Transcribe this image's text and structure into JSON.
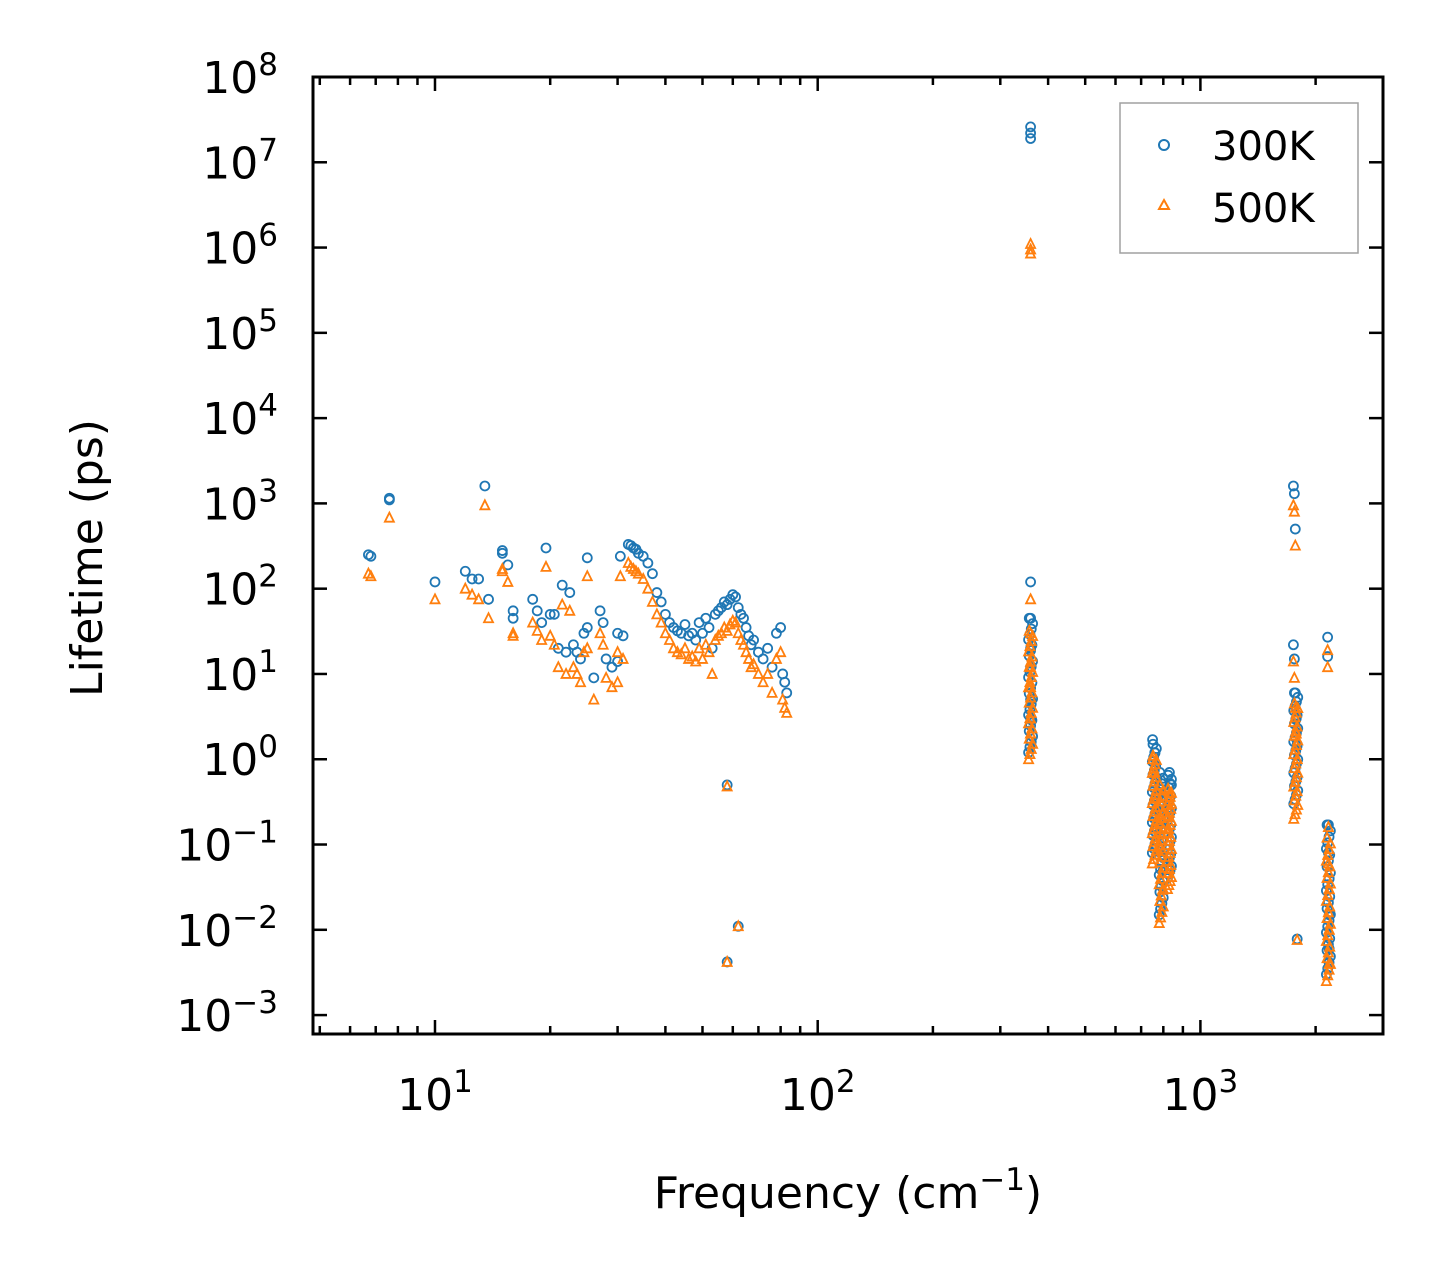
{
  "chart_data": {
    "type": "scatter",
    "title": "",
    "xlabel": "Frequency (cm",
    "xlabel_sup": "−1",
    "xlabel_suffix": ")",
    "ylabel": "Lifetime (ps)",
    "xscale": "log",
    "yscale": "log",
    "xlim": [
      4.8,
      3000
    ],
    "ylim": [
      0.0006,
      100000000
    ],
    "legend_position": "top-right",
    "colors": {
      "300K": "#1f77b4",
      "500K": "#ff7f0e"
    },
    "x_ticks": [
      {
        "value": 10,
        "base": "10",
        "exp": "1"
      },
      {
        "value": 100,
        "base": "10",
        "exp": "2"
      },
      {
        "value": 1000,
        "base": "10",
        "exp": "3"
      }
    ],
    "y_ticks": [
      {
        "value": 0.001,
        "base": "10",
        "exp": "−3"
      },
      {
        "value": 0.01,
        "base": "10",
        "exp": "−2"
      },
      {
        "value": 0.1,
        "base": "10",
        "exp": "−1"
      },
      {
        "value": 1,
        "base": "10",
        "exp": "0"
      },
      {
        "value": 10,
        "base": "10",
        "exp": "1"
      },
      {
        "value": 100,
        "base": "10",
        "exp": "2"
      },
      {
        "value": 1000,
        "base": "10",
        "exp": "3"
      },
      {
        "value": 10000,
        "base": "10",
        "exp": "4"
      },
      {
        "value": 100000,
        "base": "10",
        "exp": "5"
      },
      {
        "value": 1000000,
        "base": "10",
        "exp": "6"
      },
      {
        "value": 10000000,
        "base": "10",
        "exp": "7"
      },
      {
        "value": 100000000,
        "base": "10",
        "exp": "8"
      }
    ],
    "series": [
      {
        "name": "300K",
        "marker": "circle",
        "points": [
          [
            6.7,
            250
          ],
          [
            6.8,
            240
          ],
          [
            7.6,
            1150
          ],
          [
            7.6,
            1100
          ],
          [
            10,
            120
          ],
          [
            12,
            160
          ],
          [
            12.5,
            130
          ],
          [
            13,
            130
          ],
          [
            13.5,
            1600
          ],
          [
            13.8,
            75
          ],
          [
            15,
            280
          ],
          [
            15,
            260
          ],
          [
            15.5,
            190
          ],
          [
            16,
            55
          ],
          [
            16,
            45
          ],
          [
            18,
            75
          ],
          [
            18.5,
            55
          ],
          [
            19,
            40
          ],
          [
            19.5,
            300
          ],
          [
            20,
            50
          ],
          [
            20.5,
            50
          ],
          [
            21,
            20
          ],
          [
            21.5,
            110
          ],
          [
            22,
            18
          ],
          [
            22.5,
            90
          ],
          [
            23,
            22
          ],
          [
            23.5,
            18
          ],
          [
            24,
            15
          ],
          [
            24.5,
            30
          ],
          [
            25,
            35
          ],
          [
            25,
            230
          ],
          [
            26,
            9
          ],
          [
            27,
            55
          ],
          [
            27.5,
            40
          ],
          [
            28,
            15
          ],
          [
            29,
            12
          ],
          [
            30,
            14
          ],
          [
            30,
            30
          ],
          [
            30.5,
            240
          ],
          [
            31,
            28
          ],
          [
            32,
            330
          ],
          [
            32.5,
            320
          ],
          [
            33,
            300
          ],
          [
            33.5,
            290
          ],
          [
            34,
            260
          ],
          [
            35,
            240
          ],
          [
            36,
            200
          ],
          [
            37,
            150
          ],
          [
            38,
            90
          ],
          [
            39,
            70
          ],
          [
            40,
            50
          ],
          [
            41,
            40
          ],
          [
            42,
            35
          ],
          [
            43,
            32
          ],
          [
            44,
            30
          ],
          [
            45,
            38
          ],
          [
            46,
            28
          ],
          [
            47,
            30
          ],
          [
            48,
            25
          ],
          [
            49,
            40
          ],
          [
            50,
            30
          ],
          [
            51,
            45
          ],
          [
            52,
            35
          ],
          [
            53,
            20
          ],
          [
            54,
            50
          ],
          [
            55,
            55
          ],
          [
            56,
            60
          ],
          [
            57,
            70
          ],
          [
            58,
            65
          ],
          [
            59,
            75
          ],
          [
            60,
            85
          ],
          [
            61,
            80
          ],
          [
            62,
            60
          ],
          [
            63,
            50
          ],
          [
            64,
            45
          ],
          [
            65,
            35
          ],
          [
            66,
            28
          ],
          [
            67,
            22
          ],
          [
            68,
            25
          ],
          [
            70,
            18
          ],
          [
            72,
            15
          ],
          [
            74,
            20
          ],
          [
            76,
            12
          ],
          [
            78,
            30
          ],
          [
            80,
            35
          ],
          [
            81,
            10
          ],
          [
            82,
            8
          ],
          [
            83,
            6
          ],
          [
            58,
            0.5
          ],
          [
            62,
            0.011
          ],
          [
            58,
            0.0042
          ],
          [
            360,
            26000000
          ],
          [
            360,
            19000000
          ],
          [
            360,
            22000000
          ],
          [
            360,
            120
          ],
          [
            360,
            45
          ],
          [
            360,
            20
          ],
          [
            360,
            12
          ],
          [
            360,
            5
          ],
          [
            360,
            3
          ],
          [
            750,
            1.7
          ],
          [
            760,
            1.2
          ],
          [
            770,
            0.6
          ],
          [
            780,
            0.3
          ],
          [
            790,
            0.15
          ],
          [
            800,
            0.05
          ],
          [
            810,
            0.4
          ],
          [
            820,
            0.25
          ],
          [
            830,
            0.7
          ],
          [
            840,
            0.5
          ],
          [
            1750,
            1600
          ],
          [
            1760,
            1300
          ],
          [
            1770,
            500
          ],
          [
            1750,
            22
          ],
          [
            1760,
            15
          ],
          [
            1770,
            6
          ],
          [
            1780,
            3
          ],
          [
            1790,
            1.5
          ],
          [
            1790,
            0.0078
          ],
          [
            2150,
            27
          ],
          [
            2150,
            16
          ],
          [
            2160,
            0.17
          ],
          [
            2160,
            0.08
          ],
          [
            2170,
            0.04
          ],
          [
            2170,
            0.015
          ],
          [
            2170,
            0.006
          ]
        ],
        "vertical_bands": [
          [
            360,
            1.2,
            45
          ],
          [
            758,
            0.08,
            1.5
          ],
          [
            790,
            0.015,
            0.7
          ],
          [
            830,
            0.04,
            0.65
          ],
          [
            1775,
            0.3,
            6
          ],
          [
            2160,
            0.003,
            0.17
          ]
        ]
      },
      {
        "name": "500K",
        "marker": "triangle",
        "points": [
          [
            6.7,
            150
          ],
          [
            6.8,
            140
          ],
          [
            7.6,
            680
          ],
          [
            10,
            75
          ],
          [
            12,
            100
          ],
          [
            12.5,
            85
          ],
          [
            13,
            75
          ],
          [
            13.5,
            950
          ],
          [
            13.8,
            45
          ],
          [
            15,
            170
          ],
          [
            15,
            160
          ],
          [
            15.5,
            120
          ],
          [
            16,
            30
          ],
          [
            16,
            28
          ],
          [
            18,
            40
          ],
          [
            18.5,
            32
          ],
          [
            19,
            25
          ],
          [
            19.5,
            180
          ],
          [
            20,
            28
          ],
          [
            20.5,
            22
          ],
          [
            21,
            12
          ],
          [
            21.5,
            65
          ],
          [
            22,
            10
          ],
          [
            22.5,
            55
          ],
          [
            23,
            12
          ],
          [
            23.5,
            10
          ],
          [
            24,
            8
          ],
          [
            24.5,
            18
          ],
          [
            25,
            20
          ],
          [
            25,
            140
          ],
          [
            26,
            5
          ],
          [
            27,
            30
          ],
          [
            27.5,
            22
          ],
          [
            28,
            9
          ],
          [
            29,
            7
          ],
          [
            30,
            8
          ],
          [
            30,
            18
          ],
          [
            30.5,
            140
          ],
          [
            31,
            15
          ],
          [
            32,
            200
          ],
          [
            32.5,
            180
          ],
          [
            33,
            170
          ],
          [
            33.5,
            160
          ],
          [
            34,
            150
          ],
          [
            35,
            130
          ],
          [
            36,
            100
          ],
          [
            37,
            70
          ],
          [
            38,
            50
          ],
          [
            39,
            40
          ],
          [
            40,
            30
          ],
          [
            41,
            25
          ],
          [
            42,
            20
          ],
          [
            43,
            18
          ],
          [
            44,
            17
          ],
          [
            45,
            20
          ],
          [
            46,
            15
          ],
          [
            47,
            16
          ],
          [
            48,
            14
          ],
          [
            49,
            20
          ],
          [
            50,
            15
          ],
          [
            51,
            22
          ],
          [
            52,
            18
          ],
          [
            53,
            10
          ],
          [
            54,
            25
          ],
          [
            55,
            28
          ],
          [
            56,
            30
          ],
          [
            57,
            35
          ],
          [
            58,
            32
          ],
          [
            59,
            38
          ],
          [
            60,
            42
          ],
          [
            61,
            40
          ],
          [
            62,
            30
          ],
          [
            63,
            25
          ],
          [
            64,
            22
          ],
          [
            65,
            18
          ],
          [
            66,
            15
          ],
          [
            67,
            12
          ],
          [
            68,
            13
          ],
          [
            70,
            10
          ],
          [
            72,
            8
          ],
          [
            74,
            10
          ],
          [
            76,
            6
          ],
          [
            78,
            15
          ],
          [
            80,
            18
          ],
          [
            81,
            5
          ],
          [
            82,
            4
          ],
          [
            83,
            3.5
          ],
          [
            58,
            0.48
          ],
          [
            62,
            0.011
          ],
          [
            58,
            0.0042
          ],
          [
            360,
            1100000
          ],
          [
            360,
            950000
          ],
          [
            360,
            850000
          ],
          [
            360,
            75
          ],
          [
            360,
            30
          ],
          [
            360,
            12
          ],
          [
            360,
            7
          ],
          [
            360,
            3
          ],
          [
            360,
            2
          ],
          [
            750,
            1.0
          ],
          [
            760,
            0.7
          ],
          [
            770,
            0.35
          ],
          [
            780,
            0.18
          ],
          [
            790,
            0.09
          ],
          [
            800,
            0.03
          ],
          [
            810,
            0.22
          ],
          [
            820,
            0.15
          ],
          [
            830,
            0.4
          ],
          [
            840,
            0.3
          ],
          [
            1750,
            950
          ],
          [
            1760,
            800
          ],
          [
            1770,
            320
          ],
          [
            1750,
            14
          ],
          [
            1760,
            9
          ],
          [
            1770,
            4
          ],
          [
            1780,
            2
          ],
          [
            1790,
            1
          ],
          [
            1790,
            0.0076
          ],
          [
            2150,
            19
          ],
          [
            2150,
            12
          ],
          [
            2160,
            0.16
          ],
          [
            2160,
            0.06
          ],
          [
            2170,
            0.03
          ],
          [
            2170,
            0.01
          ],
          [
            2170,
            0.004
          ]
        ],
        "vertical_bands": [
          [
            360,
            1.0,
            32
          ],
          [
            758,
            0.06,
            1.1
          ],
          [
            790,
            0.012,
            0.5
          ],
          [
            830,
            0.03,
            0.45
          ],
          [
            1775,
            0.2,
            4.5
          ],
          [
            2160,
            0.0025,
            0.12
          ]
        ]
      }
    ]
  }
}
